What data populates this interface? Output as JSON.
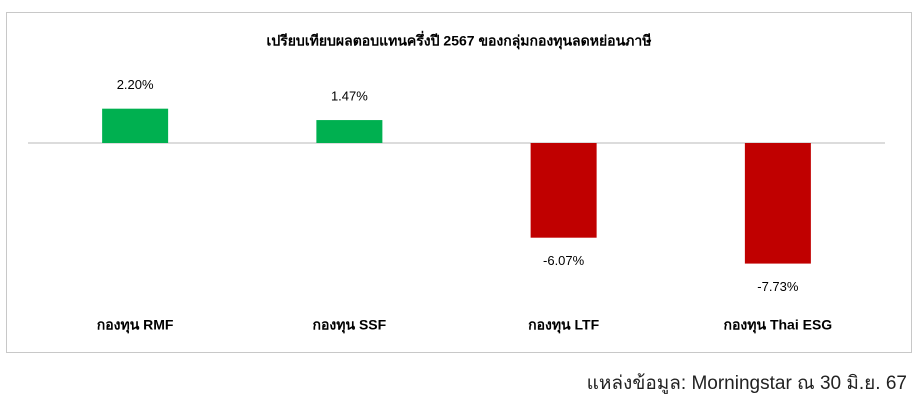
{
  "chart_data": {
    "type": "bar",
    "title": "เปรียบเทียบผลตอบแทนครึ่งปี 2567 ของกลุ่มกองทุนลดหย่อนภาษี",
    "categories": [
      "กองทุน RMF",
      "กองทุน SSF",
      "กองทุน LTF",
      "กองทุน Thai ESG"
    ],
    "values": [
      2.2,
      1.47,
      -6.07,
      -7.73
    ],
    "value_labels": [
      "2.20%",
      "1.47%",
      "-6.07%",
      "-7.73%"
    ],
    "colors": [
      "#00b050",
      "#00b050",
      "#c00000",
      "#c00000"
    ],
    "ylim": [
      -10,
      4
    ],
    "source": "แหล่งข้อมูล: Morningstar ณ 30 มิ.ย. 67"
  }
}
